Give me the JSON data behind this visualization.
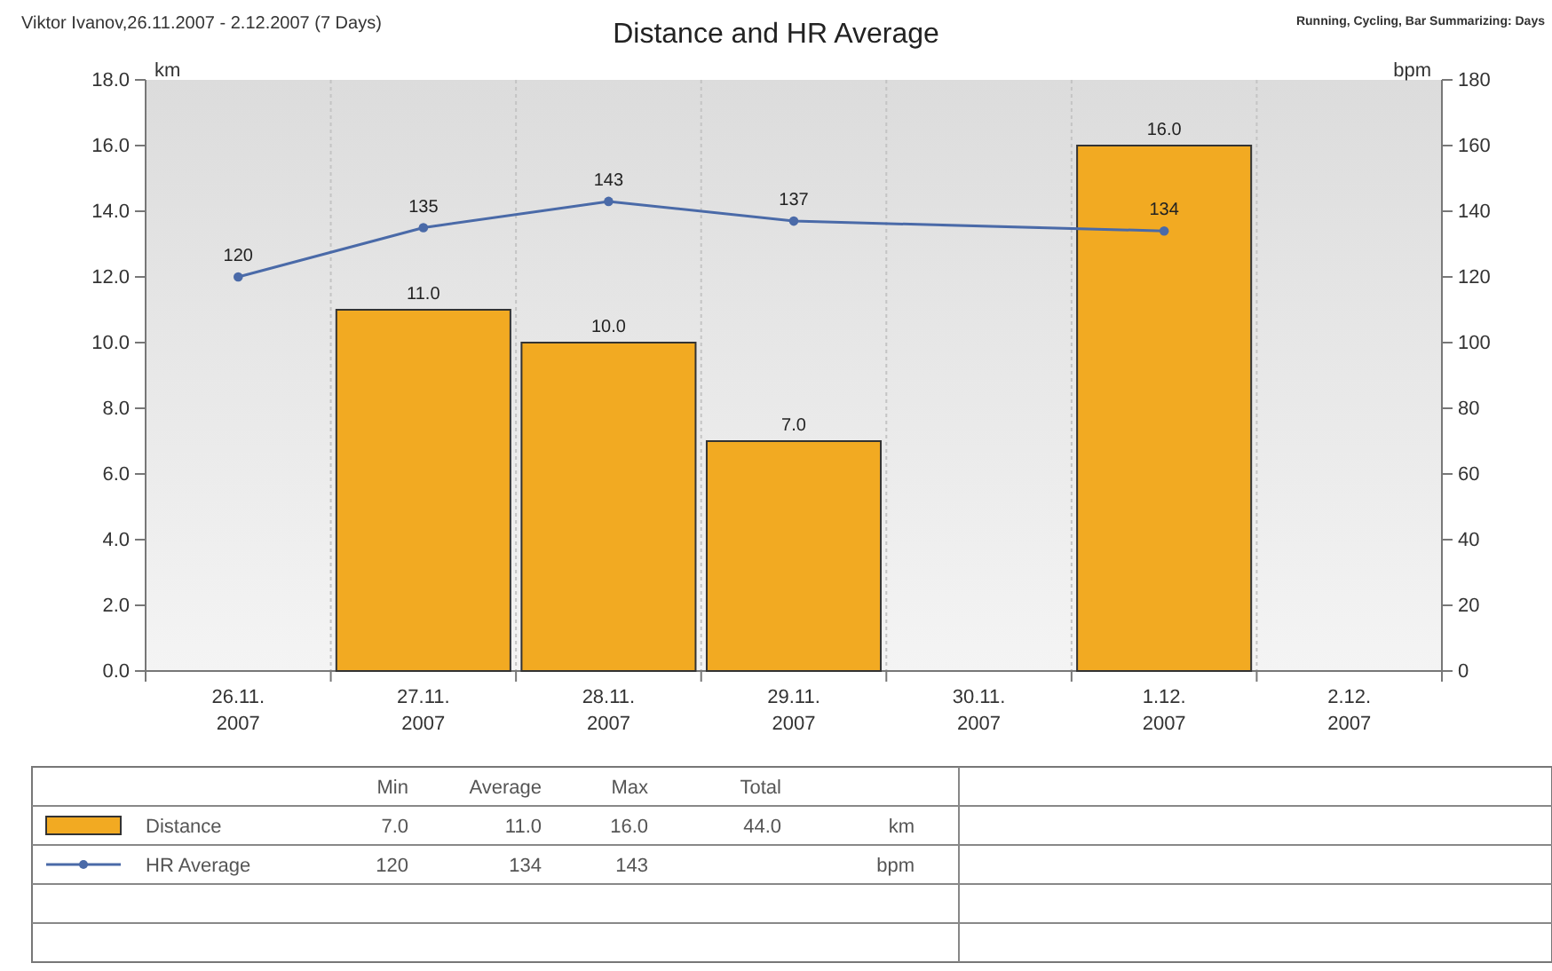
{
  "chart_data": {
    "type": "bar",
    "title": "Distance and HR Average",
    "subtitle": "Viktor Ivanov,26.11.2007 - 2.12.2007 (7 Days)",
    "ylabel": "km",
    "y2label": "bpm",
    "annotations": [
      "Running, Cycling, Bar Summarizing: Days",
      "Min",
      "Average",
      "Max",
      "Total",
      "7.0",
      "11.0",
      "16.0",
      "44.0",
      "km",
      "120",
      "134",
      "143",
      "bpm"
    ],
    "categories": [
      "26.11. 2007",
      "27.11. 2007",
      "28.11. 2007",
      "29.11. 2007",
      "30.11. 2007",
      "1.12. 2007",
      "2.12. 2007"
    ],
    "series": [
      {
        "name": "Distance",
        "color": "#f2aa22",
        "values": [
          null,
          11,
          10,
          7,
          null,
          16,
          null
        ],
        "value_labels": [
          null,
          "11.0",
          "10.0",
          "7.0",
          null,
          "16.0",
          null
        ]
      },
      {
        "name": "HR Average",
        "type": "line",
        "axis": "y2",
        "color": "#4a6aa8",
        "values": [
          120,
          135,
          143,
          137,
          null,
          134,
          null
        ],
        "value_labels": [
          "120",
          "135",
          "143",
          "137",
          null,
          "134",
          null
        ]
      }
    ],
    "ylim": [
      0,
      18
    ],
    "yticks": [
      {
        "value": 0,
        "label": "0.0"
      },
      {
        "value": 2,
        "label": "2.0"
      },
      {
        "value": 4,
        "label": "4.0"
      },
      {
        "value": 6,
        "label": "6.0"
      },
      {
        "value": 8,
        "label": "8.0"
      },
      {
        "value": 10,
        "label": "10.0"
      },
      {
        "value": 12,
        "label": "12.0"
      },
      {
        "value": 14,
        "label": "14.0"
      },
      {
        "value": 16,
        "label": "16.0"
      },
      {
        "value": 18,
        "label": "18.0"
      }
    ],
    "y2lim": [
      0,
      180
    ],
    "y2ticks": [
      0,
      20,
      40,
      60,
      80,
      100,
      120,
      140,
      160,
      180
    ],
    "marker": "circle",
    "grid": "x",
    "legend": "bottom"
  }
}
